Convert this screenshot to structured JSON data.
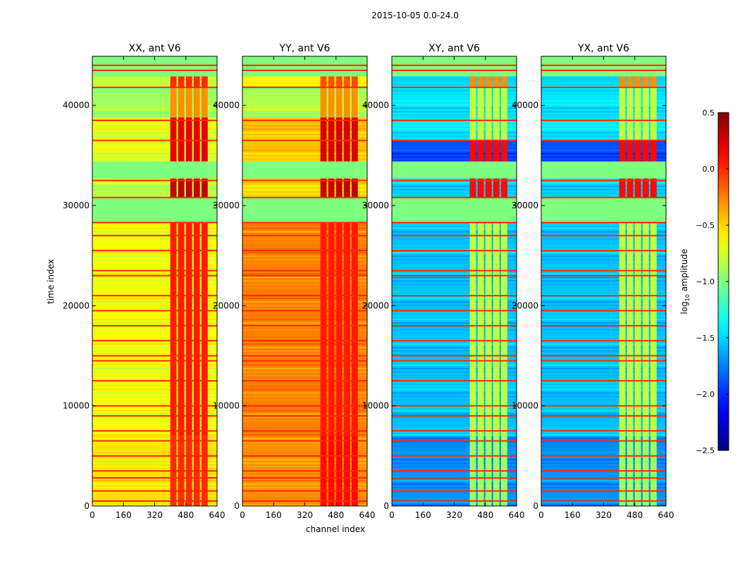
{
  "chart_data": {
    "type": "heatmap",
    "title": "2015-10-05 0.0-24.0",
    "xlabel": "channel index",
    "ylabel": "time index",
    "xlim": [
      0,
      640
    ],
    "ylim": [
      0,
      44900
    ],
    "xticks": [
      "0",
      "160",
      "320",
      "480",
      "640"
    ],
    "xtick_values": [
      0,
      160,
      320,
      480,
      640
    ],
    "yticks": [
      "0",
      "10000",
      "20000",
      "30000",
      "40000"
    ],
    "ytick_values": [
      0,
      10000,
      20000,
      30000,
      40000
    ],
    "hot_channels": [
      400,
      600
    ],
    "flag_lines": [
      500,
      1500,
      2800,
      3500,
      5000,
      6500,
      7500,
      9000,
      10000,
      12500,
      14500,
      15000,
      16500,
      18000,
      19500,
      21000,
      23000,
      23500,
      25500,
      27000,
      28300,
      30800,
      32500,
      36500,
      38500,
      41800,
      43500,
      44000
    ],
    "panels": [
      {
        "title": "XX, ant V6",
        "bands": [
          [
            0,
            7000,
            -0.55,
            0.0
          ],
          [
            7000,
            28300,
            -0.65,
            0.05
          ],
          [
            28300,
            30800,
            -1.0,
            -1.0
          ],
          [
            30800,
            32700,
            -0.8,
            0.3
          ],
          [
            32700,
            34400,
            -1.0,
            -1.0
          ],
          [
            34400,
            38800,
            -0.7,
            0.2
          ],
          [
            38800,
            41800,
            -0.9,
            -0.3
          ],
          [
            41800,
            42900,
            -0.8,
            0.0
          ],
          [
            42900,
            44900,
            -1.0,
            -1.0
          ]
        ]
      },
      {
        "title": "YY, ant V6",
        "bands": [
          [
            0,
            7000,
            -0.3,
            0.1
          ],
          [
            7000,
            28300,
            -0.25,
            0.05
          ],
          [
            28300,
            30800,
            -1.0,
            -1.0
          ],
          [
            30800,
            32700,
            -0.5,
            0.3
          ],
          [
            32700,
            34400,
            -1.0,
            -1.0
          ],
          [
            34400,
            38800,
            -0.45,
            0.25
          ],
          [
            38800,
            41800,
            -0.85,
            -0.3
          ],
          [
            41800,
            42900,
            -0.6,
            -0.1
          ],
          [
            42900,
            44900,
            -1.0,
            -1.0
          ]
        ]
      },
      {
        "title": "XY, ant V6",
        "bands": [
          [
            0,
            7000,
            -1.7,
            -0.9
          ],
          [
            7000,
            28300,
            -1.55,
            -0.8
          ],
          [
            28300,
            30800,
            -1.0,
            -1.0
          ],
          [
            30800,
            32700,
            -1.5,
            0.1
          ],
          [
            32700,
            34400,
            -1.0,
            -1.0
          ],
          [
            34400,
            36500,
            -1.9,
            0.1
          ],
          [
            36500,
            41800,
            -1.45,
            -0.8
          ],
          [
            41800,
            42900,
            -1.5,
            -0.3
          ],
          [
            42900,
            44900,
            -1.0,
            -1.0
          ]
        ]
      },
      {
        "title": "YX, ant V6",
        "bands": [
          [
            0,
            7000,
            -1.7,
            -0.9
          ],
          [
            7000,
            28300,
            -1.55,
            -0.8
          ],
          [
            28300,
            30800,
            -1.0,
            -1.0
          ],
          [
            30800,
            32700,
            -1.5,
            0.1
          ],
          [
            32700,
            34400,
            -1.0,
            -1.0
          ],
          [
            34400,
            36500,
            -1.9,
            0.1
          ],
          [
            36500,
            41800,
            -1.45,
            -0.8
          ],
          [
            41800,
            42900,
            -1.5,
            -0.3
          ],
          [
            42900,
            44900,
            -1.0,
            -1.0
          ]
        ]
      }
    ],
    "colorbar": {
      "label": "log10 amplitude",
      "label_main": "log",
      "label_sub": "10",
      "label_rest": " amplitude",
      "range": [
        -2.5,
        0.5
      ],
      "ticks": [
        "0.5",
        "0.0",
        "−0.5",
        "−1.0",
        "−1.5",
        "−2.0",
        "−2.5"
      ],
      "tick_values": [
        0.5,
        0.0,
        -0.5,
        -1.0,
        -1.5,
        -2.0,
        -2.5
      ],
      "colormap": "jet"
    }
  }
}
